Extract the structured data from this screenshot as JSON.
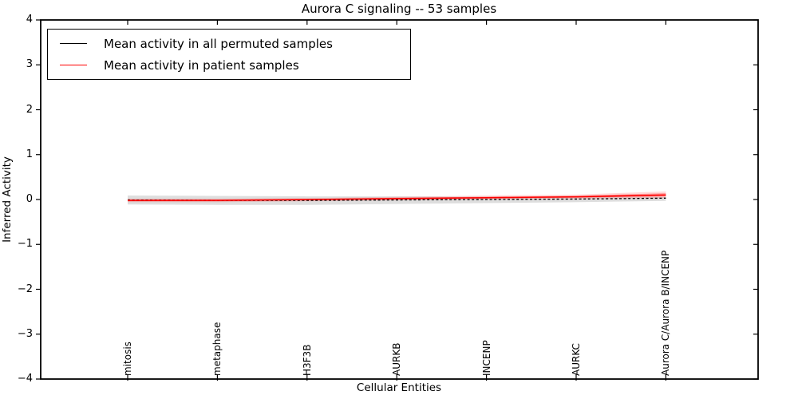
{
  "chart_data": {
    "type": "line",
    "title": "Aurora C signaling -- 53 samples",
    "xlabel": "Cellular Entities",
    "ylabel": "Inferred Activity",
    "ylim": [
      -4,
      4
    ],
    "yticks": [
      4,
      3,
      2,
      1,
      0,
      -1,
      -2,
      -3,
      -4
    ],
    "grid": false,
    "legend_position": "upper left",
    "categories": [
      "mitosis",
      "metaphase",
      "H3F3B",
      "AURKB",
      "INCENP",
      "AURKC",
      "Aurora C/Aurora B/INCENP"
    ],
    "series": [
      {
        "name": "Mean activity in all permuted samples",
        "color": "#000000",
        "style": "dashed",
        "values": [
          -0.01,
          -0.02,
          -0.02,
          -0.01,
          0.0,
          0.01,
          0.03
        ],
        "band_upper": [
          0.09,
          0.08,
          0.07,
          0.07,
          0.06,
          0.06,
          0.06
        ],
        "band_lower": [
          -0.11,
          -0.12,
          -0.12,
          -0.1,
          -0.08,
          -0.06,
          -0.03
        ],
        "band_color": "rgba(0,0,0,0.13)"
      },
      {
        "name": "Mean activity in patient samples",
        "color": "#ff0000",
        "style": "solid",
        "values": [
          -0.02,
          -0.02,
          0.0,
          0.02,
          0.04,
          0.06,
          0.1
        ],
        "band_upper": [
          0.02,
          0.02,
          0.03,
          0.06,
          0.09,
          0.11,
          0.18
        ],
        "band_lower": [
          -0.06,
          -0.06,
          -0.04,
          -0.02,
          0.0,
          0.01,
          0.03
        ],
        "inner_band_upper": [
          0.0,
          0.0,
          0.01,
          0.04,
          0.06,
          0.08,
          0.14
        ],
        "inner_band_lower": [
          -0.04,
          -0.04,
          -0.02,
          0.0,
          0.02,
          0.04,
          0.07
        ],
        "band_color": "rgba(255,0,0,0.15)",
        "inner_band_color": "rgba(255,0,0,0.32)"
      }
    ]
  },
  "legend": [
    {
      "label": "Mean activity in all permuted samples",
      "color": "#000000"
    },
    {
      "label": "Mean activity in patient samples",
      "color": "#ff0000"
    }
  ],
  "colors": {
    "axis": "#000000",
    "background": "#ffffff",
    "permuted_line": "#000000",
    "patient_line": "#ff0000"
  }
}
